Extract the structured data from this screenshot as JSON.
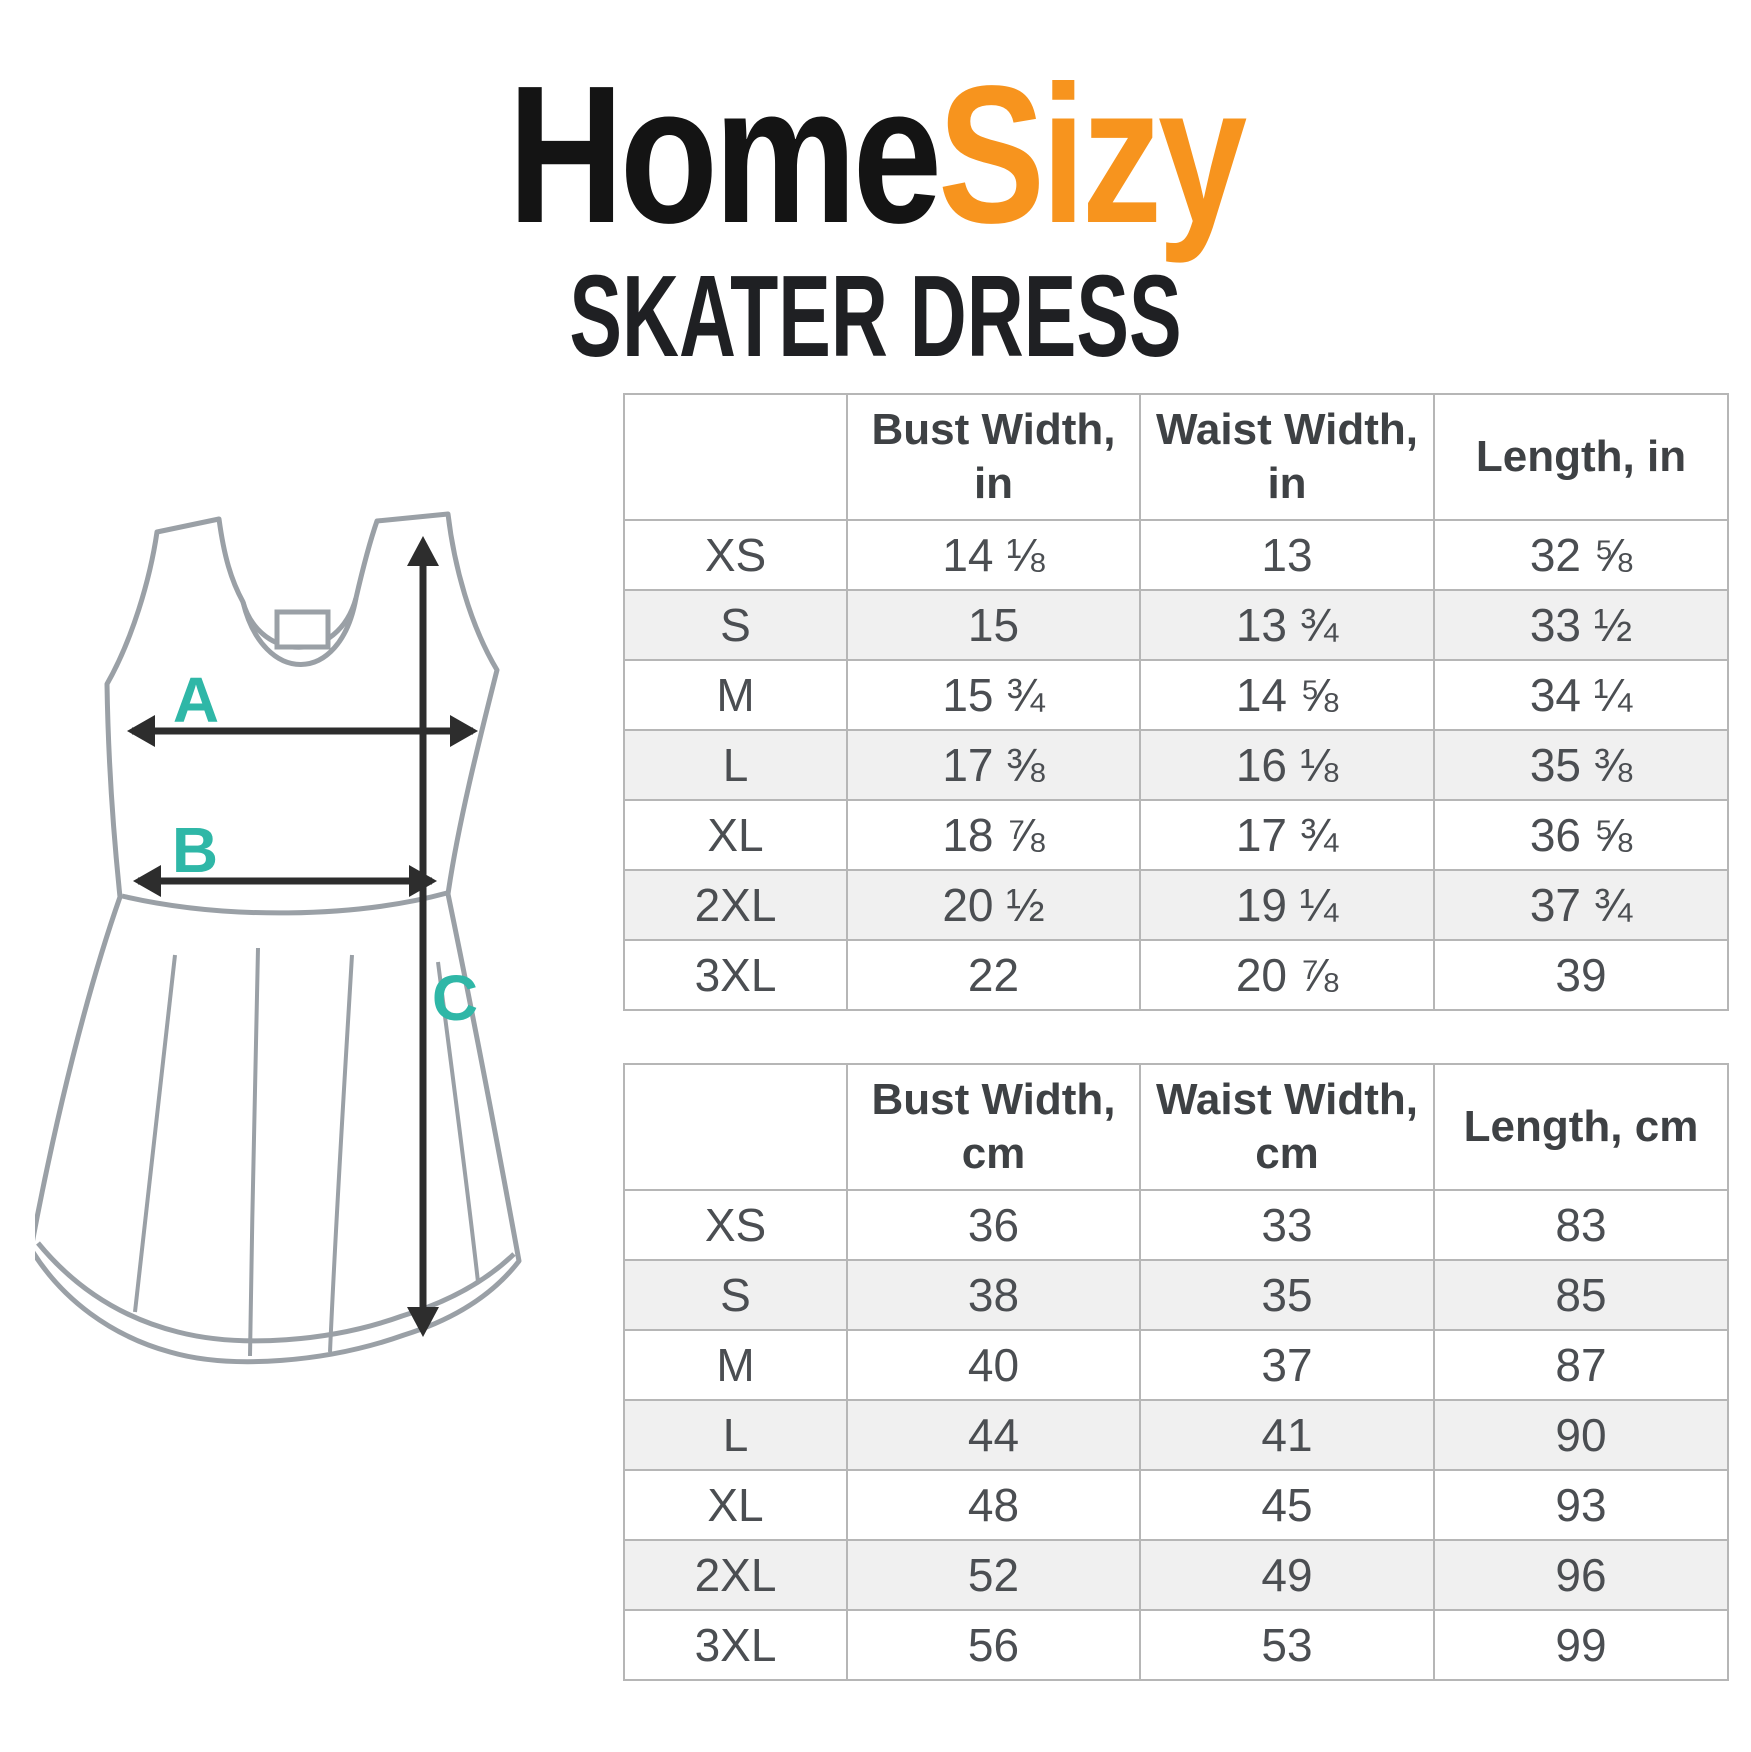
{
  "brand": {
    "name_black": "Home",
    "name_orange": "Sizy"
  },
  "title": "SKATER DRESS",
  "diagram": {
    "label_a": "A",
    "label_b": "B",
    "label_c": "C",
    "outline_color": "#9aa0a6",
    "arrow_color": "#2d2d2d",
    "label_color": "#2fb7a7"
  },
  "colors": {
    "accent_orange": "#f7941e",
    "logo_black": "#141414",
    "row_alt_gray": "#f0f0f0",
    "table_border": "#b6b6b6",
    "table_text": "#4b4e52"
  },
  "tables": [
    {
      "id": "inches",
      "headers": [
        "",
        "Bust Width, in",
        "Waist Width, in",
        "Length, in"
      ],
      "rows": [
        [
          "XS",
          "14 ⅛",
          "13",
          "32 ⅝"
        ],
        [
          "S",
          "15",
          "13 ¾",
          "33 ½"
        ],
        [
          "M",
          "15 ¾",
          "14 ⅝",
          "34 ¼"
        ],
        [
          "L",
          "17 ⅜",
          "16 ⅛",
          "35 ⅜"
        ],
        [
          "XL",
          "18 ⅞",
          "17 ¾",
          "36 ⅝"
        ],
        [
          "2XL",
          "20 ½",
          "19 ¼",
          "37 ¾"
        ],
        [
          "3XL",
          "22",
          "20 ⅞",
          "39"
        ]
      ]
    },
    {
      "id": "centimeters",
      "headers": [
        "",
        "Bust Width, cm",
        "Waist Width, cm",
        "Length, cm"
      ],
      "rows": [
        [
          "XS",
          "36",
          "33",
          "83"
        ],
        [
          "S",
          "38",
          "35",
          "85"
        ],
        [
          "M",
          "40",
          "37",
          "87"
        ],
        [
          "L",
          "44",
          "41",
          "90"
        ],
        [
          "XL",
          "48",
          "45",
          "93"
        ],
        [
          "2XL",
          "52",
          "49",
          "96"
        ],
        [
          "3XL",
          "56",
          "53",
          "99"
        ]
      ]
    }
  ]
}
